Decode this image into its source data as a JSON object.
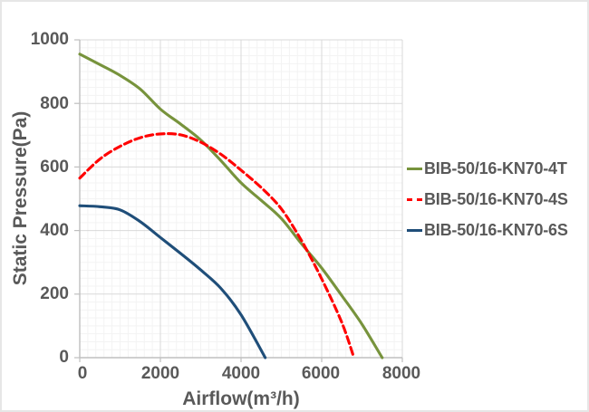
{
  "figure": {
    "background": "#ffffff",
    "border_color": "#e6e6e6",
    "text_color": "#595959"
  },
  "chart_data": {
    "type": "line",
    "title": "",
    "xlabel": "Airflow(m³/h)",
    "ylabel": "Static Pressure(Pa)",
    "xlim": [
      0,
      8000
    ],
    "ylim": [
      0,
      1000
    ],
    "xticks": [
      0,
      2000,
      4000,
      6000,
      8000
    ],
    "yticks": [
      0,
      200,
      400,
      600,
      800,
      1000
    ],
    "grid": {
      "major": true,
      "minor": true,
      "major_color": "#d9d9d9",
      "minor_color": "#f3f3f3",
      "x_minor_step": 200,
      "y_minor_step": 25
    },
    "axis_color": "#bfbfbf",
    "legend_position": "right",
    "series": [
      {
        "name": "BIB-50/16-KN70-4T",
        "color": "#77933C",
        "style": "solid",
        "points": [
          [
            0,
            955
          ],
          [
            500,
            922
          ],
          [
            1000,
            888
          ],
          [
            1500,
            845
          ],
          [
            2000,
            782
          ],
          [
            2500,
            735
          ],
          [
            3000,
            685
          ],
          [
            3500,
            620
          ],
          [
            4000,
            550
          ],
          [
            4500,
            495
          ],
          [
            5000,
            438
          ],
          [
            5500,
            358
          ],
          [
            6000,
            282
          ],
          [
            6500,
            195
          ],
          [
            7000,
            105
          ],
          [
            7500,
            0
          ]
        ]
      },
      {
        "name": "BIB-50/16-KN70-4S",
        "color": "#ff0000",
        "style": "dashed",
        "points": [
          [
            0,
            565
          ],
          [
            500,
            625
          ],
          [
            1000,
            665
          ],
          [
            1500,
            692
          ],
          [
            2000,
            704
          ],
          [
            2500,
            701
          ],
          [
            3000,
            678
          ],
          [
            3500,
            640
          ],
          [
            4000,
            590
          ],
          [
            4500,
            535
          ],
          [
            5000,
            468
          ],
          [
            5500,
            368
          ],
          [
            6000,
            248
          ],
          [
            6500,
            110
          ],
          [
            6800,
            0
          ]
        ]
      },
      {
        "name": "BIB-50/16-KN70-6S",
        "color": "#1F4E79",
        "style": "solid",
        "points": [
          [
            0,
            478
          ],
          [
            500,
            475
          ],
          [
            1000,
            465
          ],
          [
            1500,
            428
          ],
          [
            2000,
            378
          ],
          [
            2500,
            328
          ],
          [
            3000,
            276
          ],
          [
            3500,
            218
          ],
          [
            4000,
            135
          ],
          [
            4600,
            0
          ]
        ]
      }
    ]
  }
}
